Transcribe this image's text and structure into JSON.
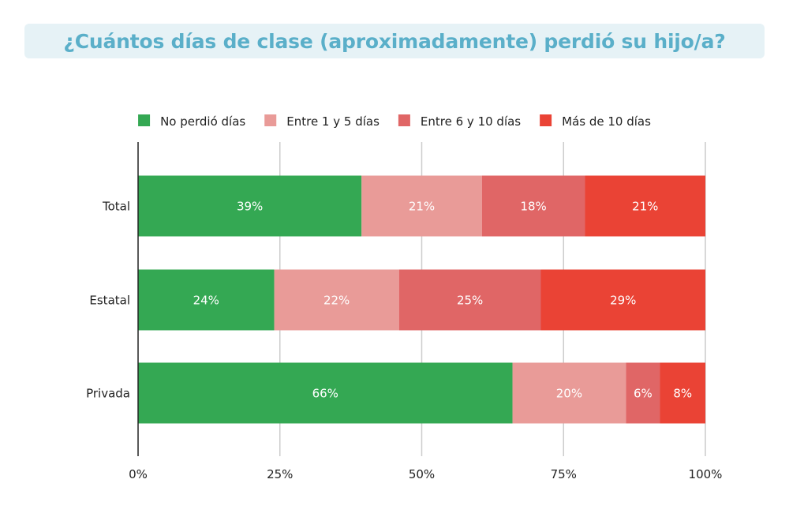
{
  "chart_data": {
    "type": "bar",
    "orientation": "horizontal",
    "stacked": true,
    "title": "¿Cuántos días de clase (aproximadamente) perdió su hijo/a?",
    "categories": [
      "Total",
      "Estatal",
      "Privada"
    ],
    "series": [
      {
        "name": "No perdió días",
        "color": "#34a853",
        "values": [
          39,
          24,
          66
        ],
        "labels": [
          "39%",
          "24%",
          "66%"
        ]
      },
      {
        "name": "Entre 1 y 5 días",
        "color": "#e99b98",
        "values": [
          21,
          22,
          20
        ],
        "labels": [
          "21%",
          "22%",
          "20%"
        ]
      },
      {
        "name": "Entre 6 y 10 días",
        "color": "#e06666",
        "values": [
          18,
          25,
          6
        ],
        "labels": [
          "18%",
          "25%",
          "6%"
        ]
      },
      {
        "name": "Más de 10 días",
        "color": "#ea4335",
        "values": [
          21,
          29,
          8
        ],
        "labels": [
          "21%",
          "29%",
          "8%"
        ]
      }
    ],
    "x_ticks": [
      {
        "value": 0,
        "label": "0%"
      },
      {
        "value": 25,
        "label": "25%"
      },
      {
        "value": 50,
        "label": "50%"
      },
      {
        "value": 75,
        "label": "75%"
      },
      {
        "value": 100,
        "label": "100%"
      }
    ],
    "xlim": [
      0,
      100
    ],
    "xlabel": "",
    "ylabel": "",
    "grid": "vertical",
    "legend_position": "top-center"
  }
}
